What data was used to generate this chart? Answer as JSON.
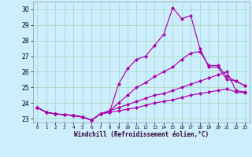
{
  "xlabel": "Windchill (Refroidissement éolien,°C)",
  "background_color": "#cceeff",
  "grid_color": "#aaddcc",
  "line_color": "#aa00aa",
  "xlim": [
    -0.5,
    23.5
  ],
  "ylim": [
    22.75,
    30.5
  ],
  "yticks": [
    23,
    24,
    25,
    26,
    27,
    28,
    29,
    30
  ],
  "xticks": [
    0,
    1,
    2,
    3,
    4,
    5,
    6,
    7,
    8,
    9,
    10,
    11,
    12,
    13,
    14,
    15,
    16,
    17,
    18,
    19,
    20,
    21,
    22,
    23
  ],
  "series": [
    {
      "x": [
        0,
        1,
        2,
        3,
        4,
        5,
        6,
        7,
        8,
        9,
        10,
        11,
        12,
        13,
        14,
        15,
        16,
        17,
        18,
        19,
        20,
        21,
        22,
        23
      ],
      "y": [
        23.7,
        23.4,
        23.3,
        23.25,
        23.2,
        23.1,
        22.9,
        23.3,
        23.4,
        25.2,
        26.2,
        26.8,
        27.0,
        27.7,
        28.4,
        30.1,
        29.4,
        29.6,
        27.5,
        26.3,
        26.3,
        25.5,
        25.4,
        25.1
      ]
    },
    {
      "x": [
        0,
        1,
        2,
        3,
        4,
        5,
        6,
        7,
        8,
        9,
        10,
        11,
        12,
        13,
        14,
        15,
        16,
        17,
        18,
        19,
        20,
        21,
        22,
        23
      ],
      "y": [
        23.7,
        23.4,
        23.3,
        23.25,
        23.2,
        23.1,
        22.9,
        23.3,
        23.5,
        24.0,
        24.5,
        25.0,
        25.3,
        25.7,
        26.0,
        26.3,
        26.8,
        27.2,
        27.3,
        26.4,
        26.4,
        25.7,
        25.4,
        25.1
      ]
    },
    {
      "x": [
        0,
        1,
        2,
        3,
        4,
        5,
        6,
        7,
        8,
        9,
        10,
        11,
        12,
        13,
        14,
        15,
        16,
        17,
        18,
        19,
        20,
        21,
        22,
        23
      ],
      "y": [
        23.7,
        23.4,
        23.3,
        23.25,
        23.2,
        23.1,
        22.9,
        23.3,
        23.5,
        23.7,
        23.9,
        24.1,
        24.3,
        24.5,
        24.6,
        24.8,
        25.0,
        25.2,
        25.4,
        25.6,
        25.8,
        26.0,
        24.8,
        24.7
      ]
    },
    {
      "x": [
        0,
        1,
        2,
        3,
        4,
        5,
        6,
        7,
        8,
        9,
        10,
        11,
        12,
        13,
        14,
        15,
        16,
        17,
        18,
        19,
        20,
        21,
        22,
        23
      ],
      "y": [
        23.7,
        23.4,
        23.3,
        23.25,
        23.2,
        23.1,
        22.9,
        23.3,
        23.4,
        23.5,
        23.6,
        23.7,
        23.85,
        24.0,
        24.1,
        24.2,
        24.35,
        24.5,
        24.6,
        24.7,
        24.8,
        24.9,
        24.7,
        24.65
      ]
    }
  ]
}
